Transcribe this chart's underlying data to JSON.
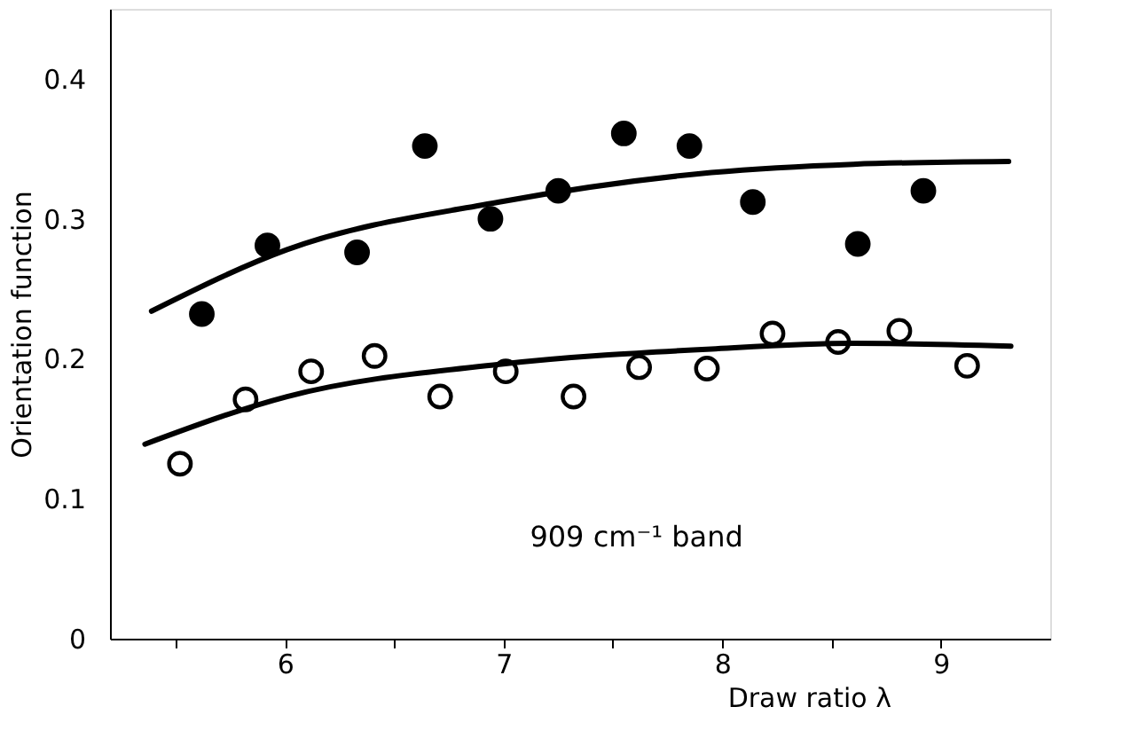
{
  "chart_data": {
    "type": "scatter",
    "xlabel": "Draw ratio  λ",
    "ylabel": "Orientation function",
    "xlim": [
      5.2,
      9.5
    ],
    "ylim": [
      0,
      0.45
    ],
    "xticks": [
      {
        "value": 5.5,
        "label": null
      },
      6,
      {
        "value": 6.5,
        "label": null
      },
      7,
      {
        "value": 7.5,
        "label": null
      },
      8,
      {
        "value": 8.5,
        "label": null
      },
      9
    ],
    "yticks": [
      0,
      0.1,
      0.2,
      0.3,
      0.4
    ],
    "grid": false,
    "marker": "circle",
    "annotations": [
      "909 cm⁻¹ band"
    ],
    "series": [
      {
        "color": "#000000",
        "x": [
          5.62,
          5.92,
          6.33,
          6.64,
          6.94,
          7.25,
          7.55,
          7.85,
          8.14,
          8.62,
          8.92
        ],
        "values": [
          0.232,
          0.281,
          0.276,
          0.352,
          0.3,
          0.32,
          0.361,
          0.352,
          0.312,
          0.282,
          0.32
        ]
      },
      {
        "color": "#000000",
        "x": [
          5.52,
          5.82,
          6.12,
          6.41,
          6.71,
          7.01,
          7.32,
          7.62,
          7.93,
          8.23,
          8.53,
          8.81,
          9.12
        ],
        "values": [
          0.125,
          0.171,
          0.191,
          0.202,
          0.173,
          0.191,
          0.173,
          0.194,
          0.193,
          0.218,
          0.212,
          0.22,
          0.195
        ]
      },
      {
        "type": "line",
        "marker": "none",
        "line_style": "solid",
        "color": "#000000",
        "x": [
          5.39,
          6.01,
          6.98,
          7.95,
          8.6,
          9.31
        ],
        "values": [
          0.234,
          0.278,
          0.312,
          0.333,
          0.339,
          0.341
        ]
      },
      {
        "type": "line",
        "marker": "none",
        "line_style": "solid",
        "color": "#000000",
        "x": [
          5.36,
          6.01,
          6.98,
          7.95,
          8.6,
          9.32
        ],
        "values": [
          0.139,
          0.173,
          0.196,
          0.207,
          0.211,
          0.209
        ]
      }
    ]
  }
}
